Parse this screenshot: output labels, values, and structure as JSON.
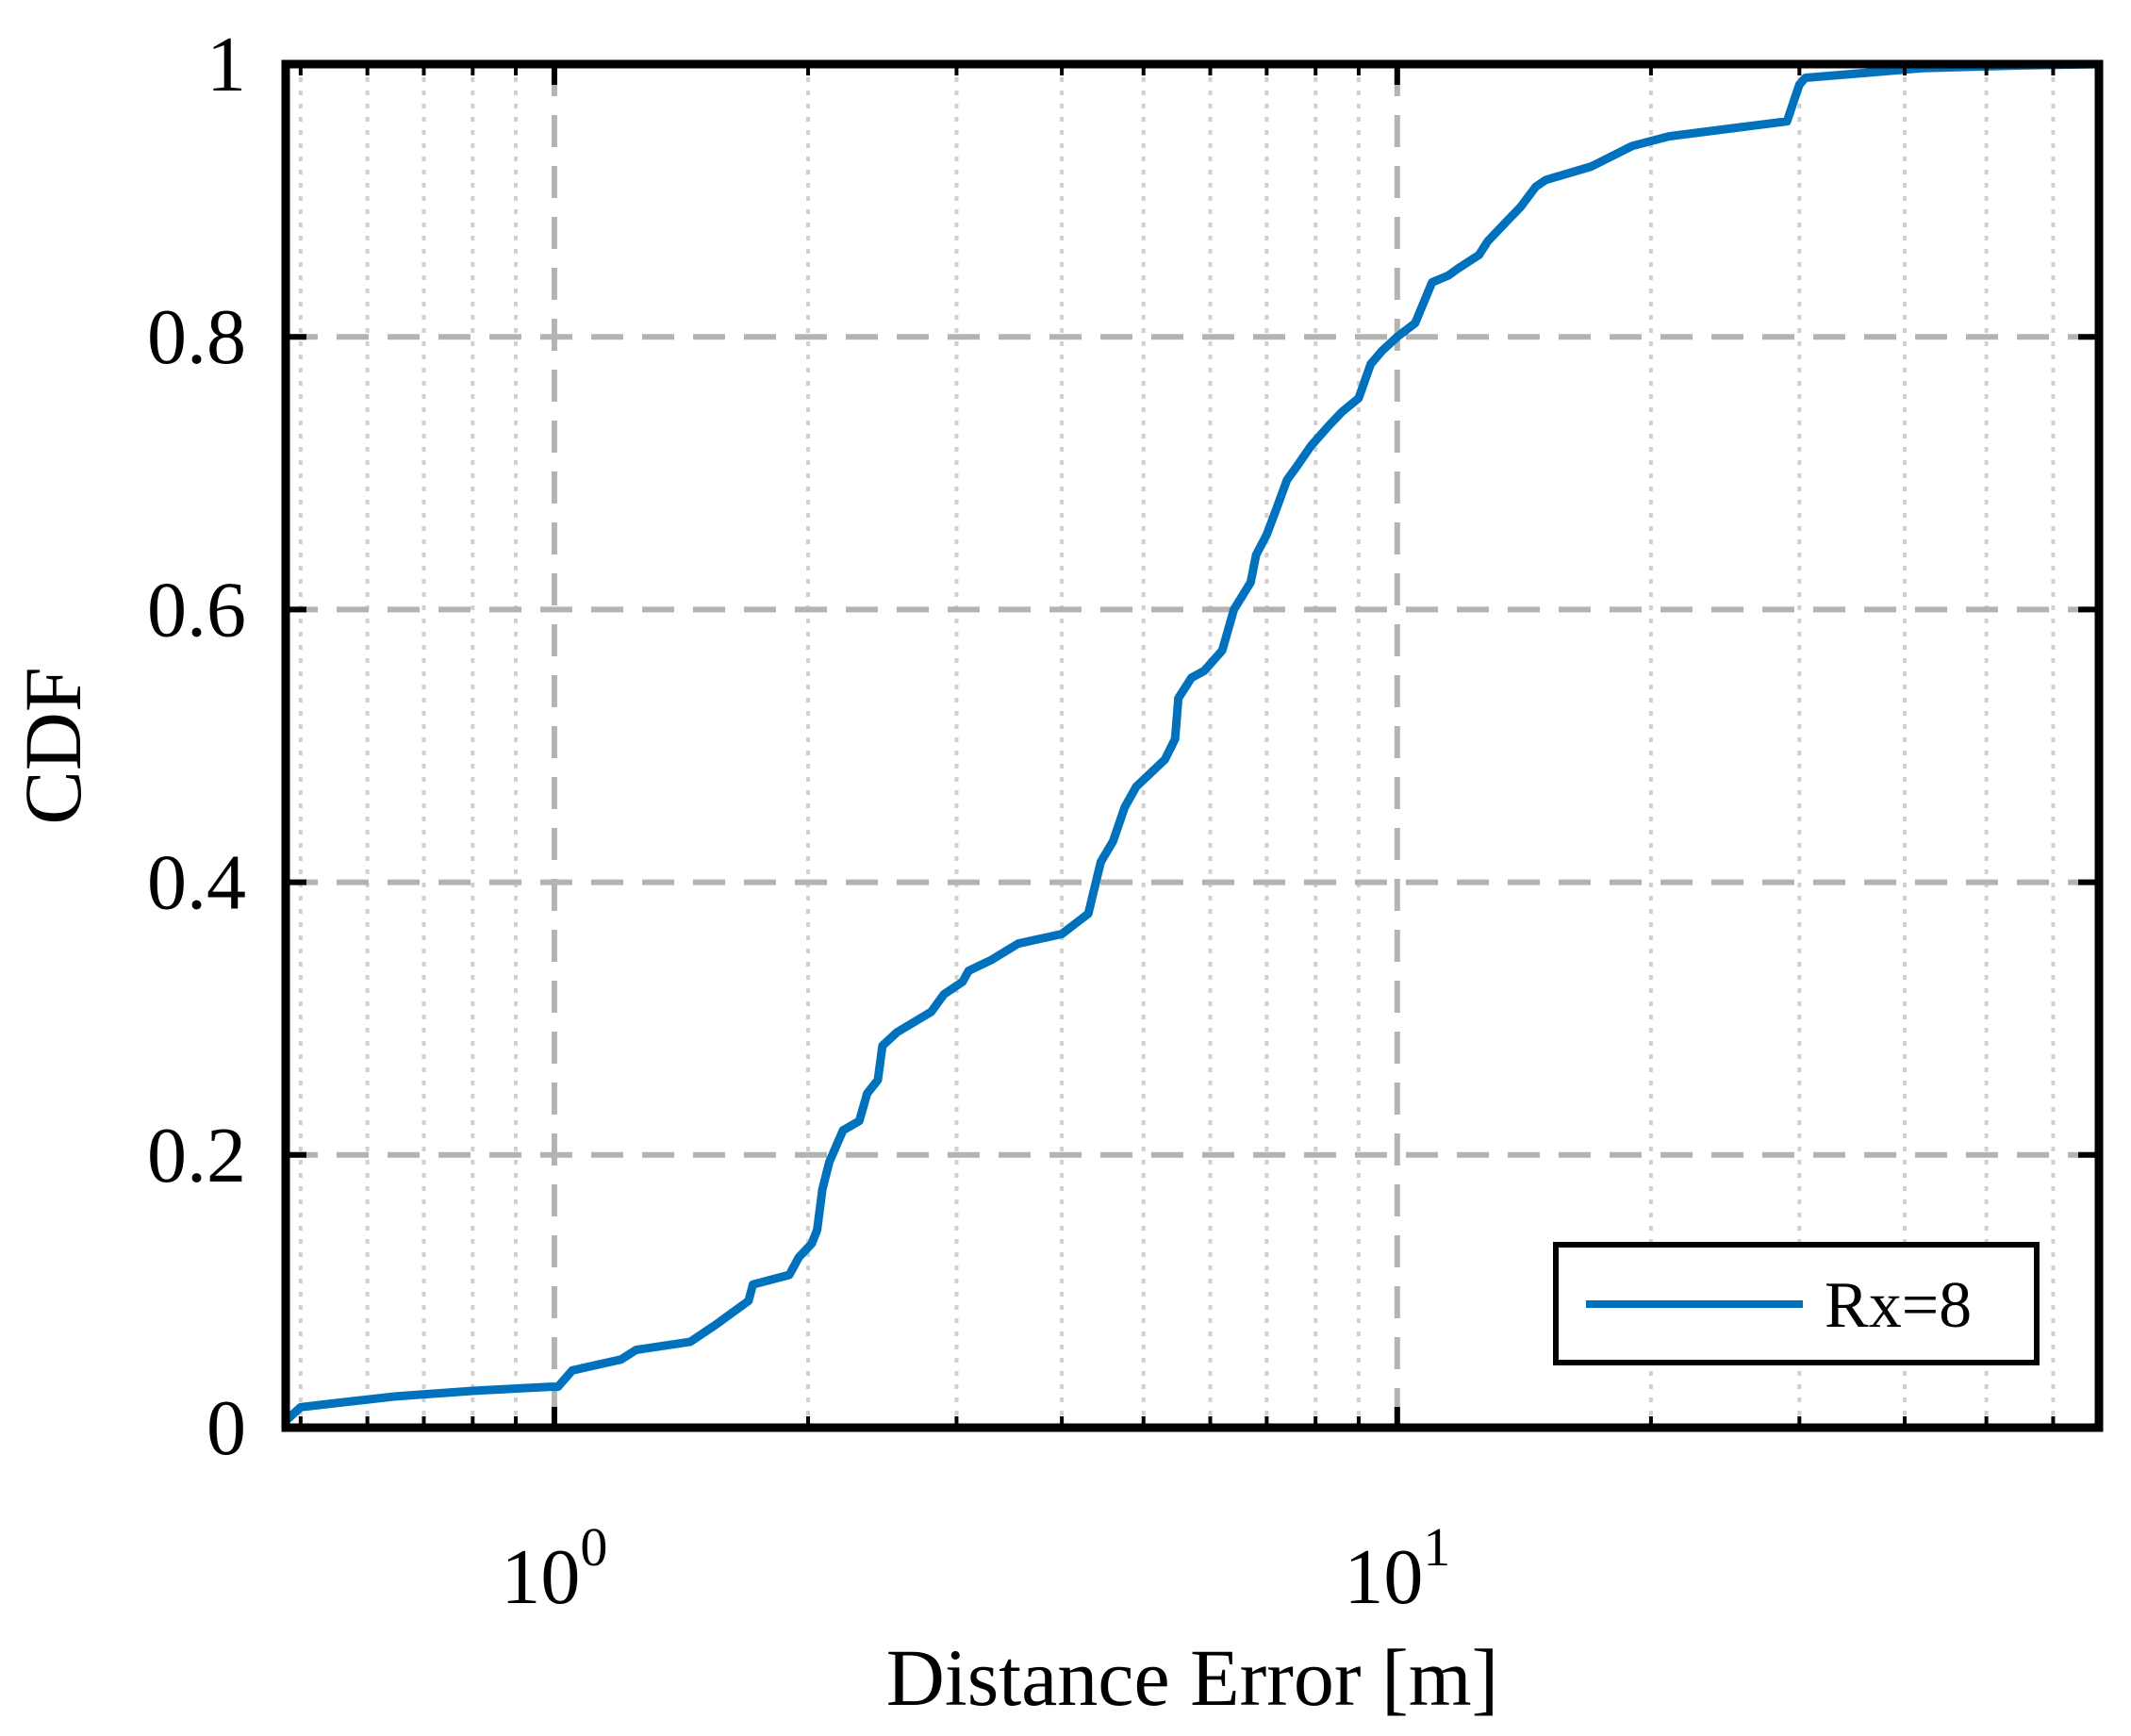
{
  "chart_data": {
    "type": "line",
    "title": "",
    "xlabel": "Distance Error [m]",
    "ylabel": "CDF",
    "xscale": "log",
    "xlim": [
      0.48,
      68
    ],
    "ylim": [
      0,
      1
    ],
    "grid": true,
    "minor_grid": true,
    "legend": {
      "placement": "bottom-right",
      "entries": [
        "Rx=8"
      ]
    },
    "x_tick_labels": [
      {
        "base": "10",
        "exp": "0",
        "value": 1
      },
      {
        "base": "10",
        "exp": "1",
        "value": 10
      }
    ],
    "y_tick_labels": [
      "0",
      "0.2",
      "0.4",
      "0.6",
      "0.8",
      "1"
    ],
    "y_tick_values": [
      0,
      0.2,
      0.4,
      0.6,
      0.8,
      1
    ],
    "series": [
      {
        "name": "Rx=8",
        "color": "#0072BD",
        "x": [
          0.48,
          0.5,
          0.55,
          0.65,
          0.8,
          0.99,
          1.01,
          1.05,
          1.2,
          1.25,
          1.45,
          1.55,
          1.7,
          1.72,
          1.9,
          1.95,
          2.02,
          2.05,
          2.08,
          2.12,
          2.2,
          2.3,
          2.35,
          2.42,
          2.45,
          2.55,
          2.8,
          2.9,
          3.05,
          3.1,
          3.3,
          3.55,
          4.0,
          4.3,
          4.35,
          4.45,
          4.6,
          4.75,
          4.9,
          5.3,
          5.45,
          5.5,
          5.7,
          5.9,
          6.2,
          6.4,
          6.7,
          6.8,
          7.0,
          7.2,
          7.4,
          7.6,
          7.9,
          8.3,
          8.6,
          9.0,
          9.3,
          9.6,
          9.8,
          10.0,
          10.5,
          11.0,
          11.5,
          11.8,
          12.5,
          12.8,
          13.5,
          14.0,
          14.6,
          15.0,
          17.0,
          19.0,
          21.0,
          25.0,
          29.0,
          30.0,
          30.5,
          35.0,
          42.0,
          55.0,
          68.0
        ],
        "y": [
          0.005,
          0.015,
          0.018,
          0.023,
          0.027,
          0.03,
          0.03,
          0.042,
          0.05,
          0.057,
          0.063,
          0.075,
          0.093,
          0.105,
          0.112,
          0.125,
          0.135,
          0.145,
          0.175,
          0.195,
          0.218,
          0.225,
          0.245,
          0.255,
          0.28,
          0.29,
          0.305,
          0.318,
          0.327,
          0.335,
          0.343,
          0.355,
          0.362,
          0.377,
          0.39,
          0.415,
          0.43,
          0.455,
          0.47,
          0.49,
          0.505,
          0.535,
          0.55,
          0.555,
          0.57,
          0.6,
          0.62,
          0.64,
          0.655,
          0.675,
          0.695,
          0.705,
          0.72,
          0.735,
          0.745,
          0.755,
          0.78,
          0.79,
          0.795,
          0.8,
          0.81,
          0.84,
          0.845,
          0.85,
          0.86,
          0.87,
          0.885,
          0.895,
          0.91,
          0.915,
          0.925,
          0.94,
          0.947,
          0.953,
          0.958,
          0.985,
          0.99,
          0.993,
          0.997,
          0.999,
          1.0
        ]
      }
    ]
  }
}
